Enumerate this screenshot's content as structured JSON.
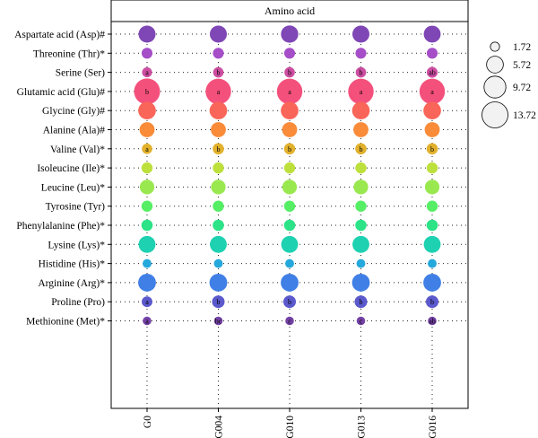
{
  "chart_data": {
    "type": "scatter",
    "strip_title": "Amino acid",
    "categories": [
      "G0",
      "G004",
      "G010",
      "G013",
      "G016"
    ],
    "rows": [
      {
        "label": "Aspartate acid (Asp)#",
        "color": "#7f47b5",
        "values": [
          5.9,
          5.9,
          6.1,
          5.9,
          5.8
        ],
        "sig": [
          "",
          "",
          "",
          "",
          ""
        ]
      },
      {
        "label": "Threonine (Thr)*",
        "color": "#a54ec8",
        "values": [
          2.4,
          2.4,
          2.4,
          2.4,
          2.4
        ],
        "sig": [
          "",
          "",
          "",
          "",
          ""
        ]
      },
      {
        "label": "Serine (Ser)",
        "color": "#cc4ea1",
        "values": [
          2.0,
          2.2,
          2.2,
          2.2,
          2.4
        ],
        "sig": [
          "a",
          "b",
          "b",
          "b",
          "ab"
        ]
      },
      {
        "label": "Glutamic acid (Glu)#",
        "color": "#f4507c",
        "values": [
          13.72,
          13.2,
          13.2,
          13.2,
          13.2
        ],
        "sig": [
          "b",
          "a",
          "a",
          "a",
          "a"
        ]
      },
      {
        "label": "Glycine (Gly)#",
        "color": "#fa6559",
        "values": [
          6.3,
          6.3,
          6.3,
          6.3,
          6.3
        ],
        "sig": [
          "",
          "",
          "",
          "",
          ""
        ]
      },
      {
        "label": "Alanine (Ala)#",
        "color": "#f98b39",
        "values": [
          4.6,
          4.6,
          4.6,
          4.6,
          4.6
        ],
        "sig": [
          "",
          "",
          "",
          "",
          ""
        ]
      },
      {
        "label": "Valine (Val)*",
        "color": "#e2b12c",
        "values": [
          2.2,
          2.6,
          2.6,
          2.6,
          2.6
        ],
        "sig": [
          "a",
          "b",
          "b",
          "b",
          "b"
        ]
      },
      {
        "label": "Isoleucine (Ile)*",
        "color": "#bde03d",
        "values": [
          2.5,
          2.5,
          2.5,
          2.5,
          2.5
        ],
        "sig": [
          "",
          "",
          "",
          "",
          ""
        ]
      },
      {
        "label": "Leucine (Leu)*",
        "color": "#9ae84f",
        "values": [
          4.3,
          4.3,
          4.3,
          4.3,
          4.3
        ],
        "sig": [
          "",
          "",
          "",
          "",
          ""
        ]
      },
      {
        "label": "Tyrosine (Tyr)",
        "color": "#55ee64",
        "values": [
          2.5,
          2.5,
          2.5,
          2.5,
          2.5
        ],
        "sig": [
          "",
          "",
          "",
          "",
          ""
        ]
      },
      {
        "label": "Phenylalanine (Phe)*",
        "color": "#2ce387",
        "values": [
          2.6,
          2.6,
          2.6,
          2.6,
          2.6
        ],
        "sig": [
          "",
          "",
          "",
          "",
          ""
        ]
      },
      {
        "label": "Lysine (Lys)*",
        "color": "#1dd1b1",
        "values": [
          5.8,
          5.8,
          5.8,
          5.8,
          5.8
        ],
        "sig": [
          "",
          "",
          "",
          "",
          ""
        ]
      },
      {
        "label": "Histidine (His)*",
        "color": "#25a8dc",
        "values": [
          1.6,
          1.6,
          1.6,
          1.6,
          1.6
        ],
        "sig": [
          "",
          "",
          "",
          "",
          ""
        ]
      },
      {
        "label": "Arginine (Arg)*",
        "color": "#3f7fe6",
        "values": [
          6.4,
          6.4,
          6.4,
          6.4,
          6.4
        ],
        "sig": [
          "",
          "",
          "",
          "",
          ""
        ]
      },
      {
        "label": "Proline (Pro)",
        "color": "#5b59cc",
        "values": [
          2.3,
          3.2,
          3.2,
          3.2,
          3.2
        ],
        "sig": [
          "a",
          "b",
          "b",
          "b",
          "b"
        ]
      },
      {
        "label": "Methionine (Met)*",
        "color": "#7542a6",
        "values": [
          1.5,
          1.5,
          1.5,
          1.5,
          1.5
        ],
        "sig": [
          "a",
          "bc",
          "c",
          "c",
          "ab"
        ]
      }
    ],
    "size_legend": [
      1.72,
      5.72,
      9.72,
      13.72
    ],
    "size_legend_labels": [
      "1.72",
      "5.72",
      "9.72",
      "13.72"
    ],
    "grid": "dotted",
    "legend_position": "right"
  }
}
